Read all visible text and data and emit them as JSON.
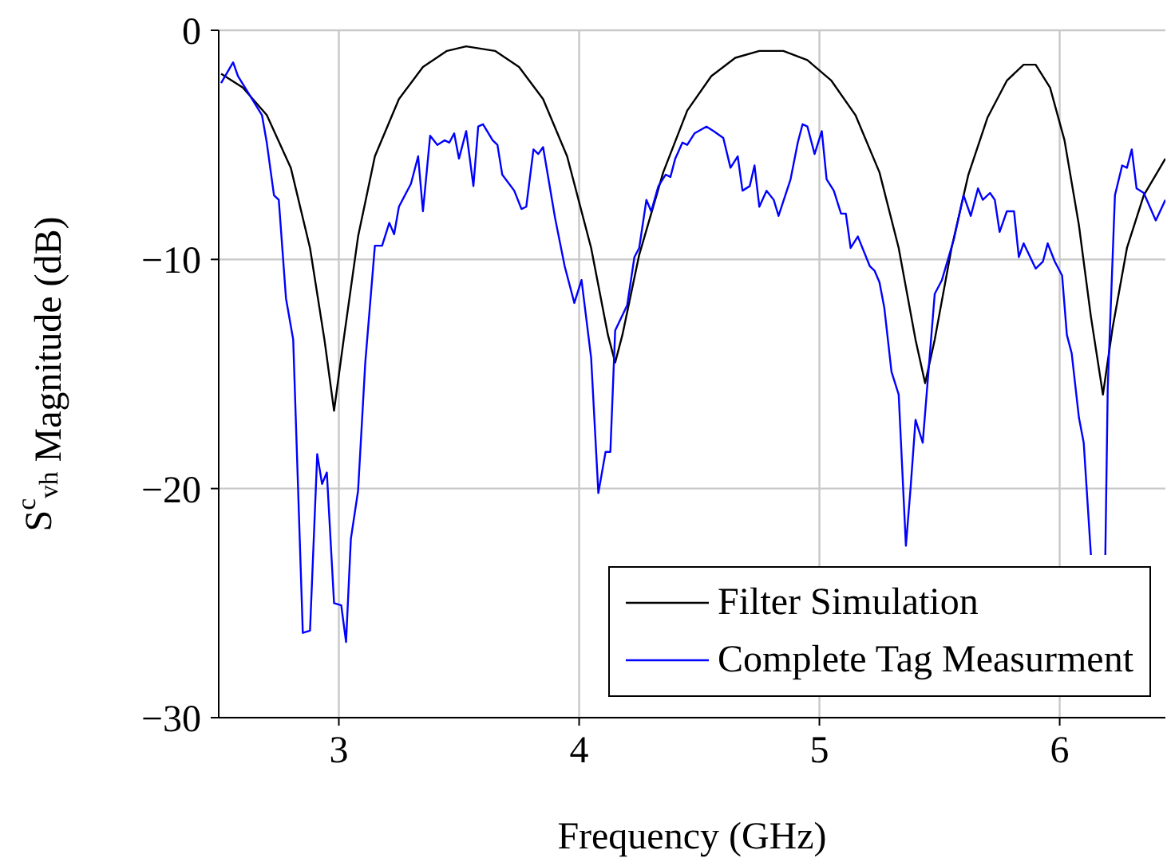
{
  "chart_data": {
    "type": "line",
    "xlabel": "Frequency (GHz)",
    "ylabel": "S$^{c}$$_{vh}$ Magnitude (dB)",
    "xlim": [
      2.5,
      6.44
    ],
    "xticks": [
      3,
      4,
      5,
      6
    ],
    "ylim": [
      -30,
      0
    ],
    "yticks": [
      {
        "value": -30,
        "label": "−30"
      },
      {
        "value": -20,
        "label": "−20"
      },
      {
        "value": -10,
        "label": "−10"
      },
      0
    ],
    "grid": true,
    "legend": "bottom right",
    "marker": "none",
    "line_style": "solid",
    "series": [
      {
        "name": "Filter Simulation",
        "color": "#000000",
        "x": [
          2.51,
          2.6,
          2.7,
          2.8,
          2.88,
          2.94,
          2.98,
          3.02,
          3.08,
          3.15,
          3.25,
          3.35,
          3.45,
          3.53,
          3.65,
          3.75,
          3.85,
          3.95,
          4.05,
          4.12,
          4.15,
          4.18,
          4.25,
          4.35,
          4.45,
          4.55,
          4.65,
          4.75,
          4.85,
          4.95,
          5.05,
          5.15,
          5.25,
          5.33,
          5.4,
          5.44,
          5.48,
          5.55,
          5.62,
          5.7,
          5.78,
          5.85,
          5.9,
          5.96,
          6.02,
          6.08,
          6.13,
          6.18,
          6.22,
          6.28,
          6.35,
          6.44
        ],
        "values": [
          -1.9,
          -2.5,
          -3.7,
          -6.0,
          -9.5,
          -13.5,
          -16.6,
          -13.5,
          -9,
          -5.5,
          -3.0,
          -1.6,
          -0.9,
          -0.7,
          -0.9,
          -1.6,
          -3.0,
          -5.5,
          -9.5,
          -13.3,
          -14.5,
          -13.3,
          -9.8,
          -6.2,
          -3.5,
          -2.0,
          -1.2,
          -0.9,
          -0.9,
          -1.3,
          -2.2,
          -3.7,
          -6.2,
          -9.5,
          -13.5,
          -15.4,
          -13.5,
          -9.5,
          -6.3,
          -3.8,
          -2.2,
          -1.5,
          -1.5,
          -2.5,
          -4.8,
          -8.5,
          -12.5,
          -15.9,
          -13,
          -9.5,
          -7.2,
          -5.6
        ]
      },
      {
        "name": "Complete Tag Measurment",
        "color": "#0000ff",
        "x": [
          2.51,
          2.56,
          2.58,
          2.68,
          2.7,
          2.73,
          2.75,
          2.78,
          2.81,
          2.85,
          2.88,
          2.91,
          2.93,
          2.95,
          2.98,
          3.01,
          3.03,
          3.05,
          3.08,
          3.11,
          3.15,
          3.18,
          3.21,
          3.23,
          3.25,
          3.3,
          3.33,
          3.35,
          3.38,
          3.41,
          3.44,
          3.46,
          3.48,
          3.5,
          3.53,
          3.56,
          3.58,
          3.6,
          3.64,
          3.66,
          3.68,
          3.73,
          3.76,
          3.78,
          3.81,
          3.83,
          3.85,
          3.9,
          3.94,
          3.98,
          4.01,
          4.05,
          4.08,
          4.11,
          4.13,
          4.15,
          4.2,
          4.23,
          4.25,
          4.28,
          4.3,
          4.33,
          4.36,
          4.38,
          4.4,
          4.43,
          4.45,
          4.48,
          4.53,
          4.56,
          4.6,
          4.63,
          4.66,
          4.68,
          4.71,
          4.73,
          4.75,
          4.78,
          4.81,
          4.83,
          4.88,
          4.91,
          4.93,
          4.95,
          4.98,
          5.01,
          5.03,
          5.06,
          5.09,
          5.11,
          5.13,
          5.16,
          5.21,
          5.23,
          5.25,
          5.27,
          5.3,
          5.33,
          5.36,
          5.38,
          5.4,
          5.43,
          5.48,
          5.51,
          5.56,
          5.6,
          5.63,
          5.66,
          5.68,
          5.71,
          5.73,
          5.75,
          5.78,
          5.81,
          5.83,
          5.85,
          5.9,
          5.93,
          5.95,
          5.98,
          6.01,
          6.03,
          6.05,
          6.08,
          6.1,
          6.13,
          6.16,
          6.19,
          6.2,
          6.23,
          6.26,
          6.28,
          6.3,
          6.32,
          6.35,
          6.4,
          6.44
        ],
        "values": [
          -2.3,
          -1.4,
          -2.0,
          -3.7,
          -4.9,
          -7.2,
          -7.4,
          -11.7,
          -13.5,
          -26.3,
          -26.2,
          -18.5,
          -19.8,
          -19.3,
          -25,
          -25.1,
          -26.7,
          -22.2,
          -20.1,
          -14.5,
          -9.4,
          -9.4,
          -8.4,
          -8.9,
          -7.7,
          -6.7,
          -5.5,
          -7.9,
          -4.6,
          -5.0,
          -4.8,
          -4.9,
          -4.5,
          -5.6,
          -4.4,
          -6.8,
          -4.2,
          -4.1,
          -4.8,
          -5.0,
          -6.3,
          -7.0,
          -7.8,
          -7.7,
          -5.2,
          -5.4,
          -5.1,
          -8.2,
          -10.3,
          -11.9,
          -10.9,
          -14.3,
          -20.2,
          -18.4,
          -18.4,
          -13.1,
          -12.0,
          -9.9,
          -9.5,
          -7.4,
          -7.9,
          -6.8,
          -6.3,
          -6.4,
          -5.6,
          -4.9,
          -5.0,
          -4.5,
          -4.2,
          -4.4,
          -4.7,
          -6.0,
          -5.5,
          -7.0,
          -6.8,
          -5.9,
          -7.7,
          -7.0,
          -7.4,
          -8.1,
          -6.5,
          -4.9,
          -4.1,
          -4.2,
          -5.4,
          -4.4,
          -6.5,
          -7.0,
          -8.0,
          -8.0,
          -9.5,
          -9.0,
          -10.3,
          -10.5,
          -11.0,
          -12.1,
          -14.9,
          -15.9,
          -22.5,
          -19.9,
          -17.0,
          -18.0,
          -11.5,
          -10.9,
          -9.1,
          -7.2,
          -8.1,
          -6.9,
          -7.4,
          -7.1,
          -7.4,
          -8.8,
          -7.9,
          -7.9,
          -9.9,
          -9.3,
          -10.4,
          -10.1,
          -9.3,
          -10.1,
          -10.7,
          -13.3,
          -14.1,
          -16.9,
          -18.0,
          -22.9,
          null,
          -22.9,
          -15.6,
          -7.2,
          -5.9,
          -6.0,
          -5.2,
          -6.9,
          -7.1,
          -8.3,
          -7.4
        ]
      }
    ]
  }
}
